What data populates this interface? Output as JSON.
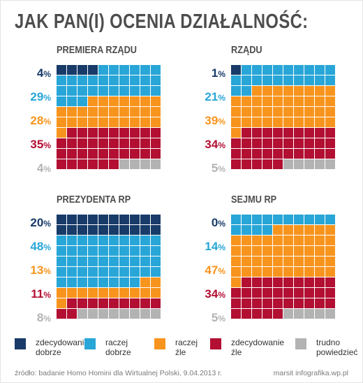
{
  "title": "JAK PAN(I) OCENIA DZIAŁALNOŚĆ:",
  "categories_legend": [
    {
      "label": "zdecydowanie\ndobrze",
      "color": "#183b69"
    },
    {
      "label": "raczej\ndobrze",
      "color": "#28a6d7"
    },
    {
      "label": "raczej\nźle",
      "color": "#f7941d"
    },
    {
      "label": "zdecydowanie\nźle",
      "color": "#b20f32"
    },
    {
      "label": "trudno\npowiedzieć",
      "color": "#b3b3b3"
    }
  ],
  "chart_data": [
    {
      "type": "waffle",
      "title": "PREMIERA RZĄDU",
      "categories": [
        "zdecydowanie dobrze",
        "raczej dobrze",
        "raczej źle",
        "zdecydowanie źle",
        "trudno powiedzieć"
      ],
      "values": [
        4,
        29,
        28,
        35,
        4
      ],
      "labels": [
        "4",
        "29",
        "28",
        "35",
        "4"
      ]
    },
    {
      "type": "waffle",
      "title": "RZĄDU",
      "categories": [
        "zdecydowanie dobrze",
        "raczej dobrze",
        "raczej źle",
        "zdecydowanie źle",
        "trudno powiedzieć"
      ],
      "values": [
        1,
        21,
        39,
        34,
        5
      ],
      "labels": [
        "1",
        "21",
        "39",
        "34",
        "5"
      ]
    },
    {
      "type": "waffle",
      "title": "PREZYDENTA RP",
      "categories": [
        "zdecydowanie dobrze",
        "raczej dobrze",
        "raczej źle",
        "zdecydowanie źle",
        "trudno powiedzieć"
      ],
      "values": [
        20,
        48,
        13,
        11,
        8
      ],
      "labels": [
        "20",
        "48",
        "13",
        "11",
        "8"
      ]
    },
    {
      "type": "waffle",
      "title": "SEJMU RP",
      "categories": [
        "zdecydowanie dobrze",
        "raczej dobrze",
        "raczej źle",
        "zdecydowanie źle",
        "trudno powiedzieć"
      ],
      "values": [
        0,
        14,
        47,
        34,
        5
      ],
      "labels": [
        "0",
        "14",
        "47",
        "34",
        "5"
      ]
    }
  ],
  "percent_sign": "%",
  "footer": {
    "source": "źródło: badanie Homo Homini dla Wirtualnej Polski, 9.04.2013 r.",
    "credit": "marsit infografika.wp.pl"
  }
}
